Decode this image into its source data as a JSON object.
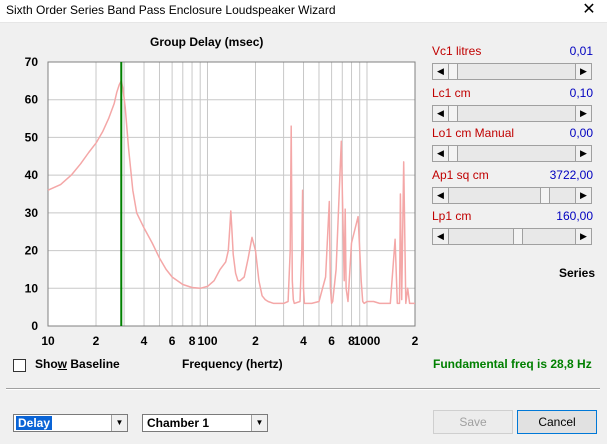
{
  "window": {
    "title": "Sixth Order Series Band Pass Enclosure Loudspeaker Wizard",
    "close_glyph": "✕"
  },
  "chart_data": {
    "type": "line",
    "title": "Group Delay (msec)",
    "xlabel": "Frequency (hertz)",
    "ylabel": "",
    "x_scale": "log",
    "xlim": [
      10,
      2000
    ],
    "ylim": [
      0,
      70
    ],
    "y_ticks": [
      0,
      10,
      20,
      30,
      40,
      50,
      60,
      70
    ],
    "x_tick_labels": [
      {
        "v": 10,
        "t": "10"
      },
      {
        "v": 20,
        "t": "2"
      },
      {
        "v": 40,
        "t": "4"
      },
      {
        "v": 60,
        "t": "6"
      },
      {
        "v": 80,
        "t": "8"
      },
      {
        "v": 100,
        "t": "100"
      },
      {
        "v": 200,
        "t": "2"
      },
      {
        "v": 400,
        "t": "4"
      },
      {
        "v": 600,
        "t": "6"
      },
      {
        "v": 800,
        "t": "8"
      },
      {
        "v": 1000,
        "t": "1000"
      },
      {
        "v": 2000,
        "t": "2"
      }
    ],
    "grid": true,
    "marker": {
      "x": 28.8,
      "color": "#008000"
    },
    "series": [
      {
        "color": "#f4a7a7",
        "x": [
          10,
          12,
          14,
          16,
          18,
          20,
          22,
          24,
          26,
          27,
          28,
          28.8,
          29.5,
          30.5,
          32,
          34,
          36,
          40,
          45,
          50,
          55,
          60,
          70,
          80,
          90,
          100,
          110,
          120,
          130,
          135,
          138,
          140,
          142,
          145,
          150,
          155,
          160,
          170,
          180,
          190,
          200,
          210,
          220,
          230,
          240,
          260,
          280,
          300,
          320,
          330,
          335,
          340,
          345,
          350,
          380,
          390,
          395,
          400,
          405,
          420,
          450,
          500,
          550,
          580,
          590,
          600,
          610,
          640,
          690,
          720,
          730,
          740,
          760,
          800,
          880,
          920,
          940,
          960,
          1000,
          1100,
          1200,
          1400,
          1500,
          1550,
          1600,
          1620,
          1650,
          1700,
          1750,
          1800,
          1850,
          1900,
          1950,
          2000
        ],
        "y": [
          36,
          37.5,
          40,
          43,
          46,
          48.5,
          51.5,
          55,
          59,
          62,
          64,
          65,
          63,
          58,
          47,
          36,
          30,
          26,
          22,
          18,
          15,
          13,
          11,
          10.2,
          10,
          10.5,
          12,
          15,
          17,
          20,
          26,
          30.5,
          26,
          19,
          14,
          12,
          12,
          13,
          18,
          23.5,
          20,
          12,
          8,
          7,
          6.5,
          6,
          6,
          6,
          6.5,
          20,
          53,
          12,
          7,
          6,
          6.5,
          20,
          36,
          10,
          6,
          6,
          6,
          6.5,
          13,
          33,
          10,
          6,
          6.5,
          15,
          49,
          12,
          31,
          10,
          6.5,
          22,
          29,
          12,
          6.5,
          6,
          6.5,
          6.5,
          6,
          6,
          23,
          6,
          6,
          35,
          7,
          43.5,
          6,
          10,
          6,
          6,
          6,
          6
        ]
      }
    ]
  },
  "params": [
    {
      "label": "Vc1  litres",
      "value": "0,01",
      "thumb": 0.0
    },
    {
      "label": "Lc1  cm",
      "value": "0,10",
      "thumb": 0.0
    },
    {
      "label": "Lo1  cm  Manual",
      "value": "0,00",
      "thumb": 0.0
    },
    {
      "label": "Ap1  sq cm",
      "value": "3722,00",
      "thumb": 0.78
    },
    {
      "label": "Lp1  cm",
      "value": "160,00",
      "thumb": 0.55
    }
  ],
  "series_label": "Series",
  "show_baseline": {
    "label": "Show Baseline",
    "checked": false
  },
  "fundamental": "Fundamental freq is 28,8 Hz",
  "plot_select": {
    "value": "Delay"
  },
  "chamber_select": {
    "value": "Chamber 1"
  },
  "buttons": {
    "save": "Save",
    "cancel": "Cancel"
  }
}
